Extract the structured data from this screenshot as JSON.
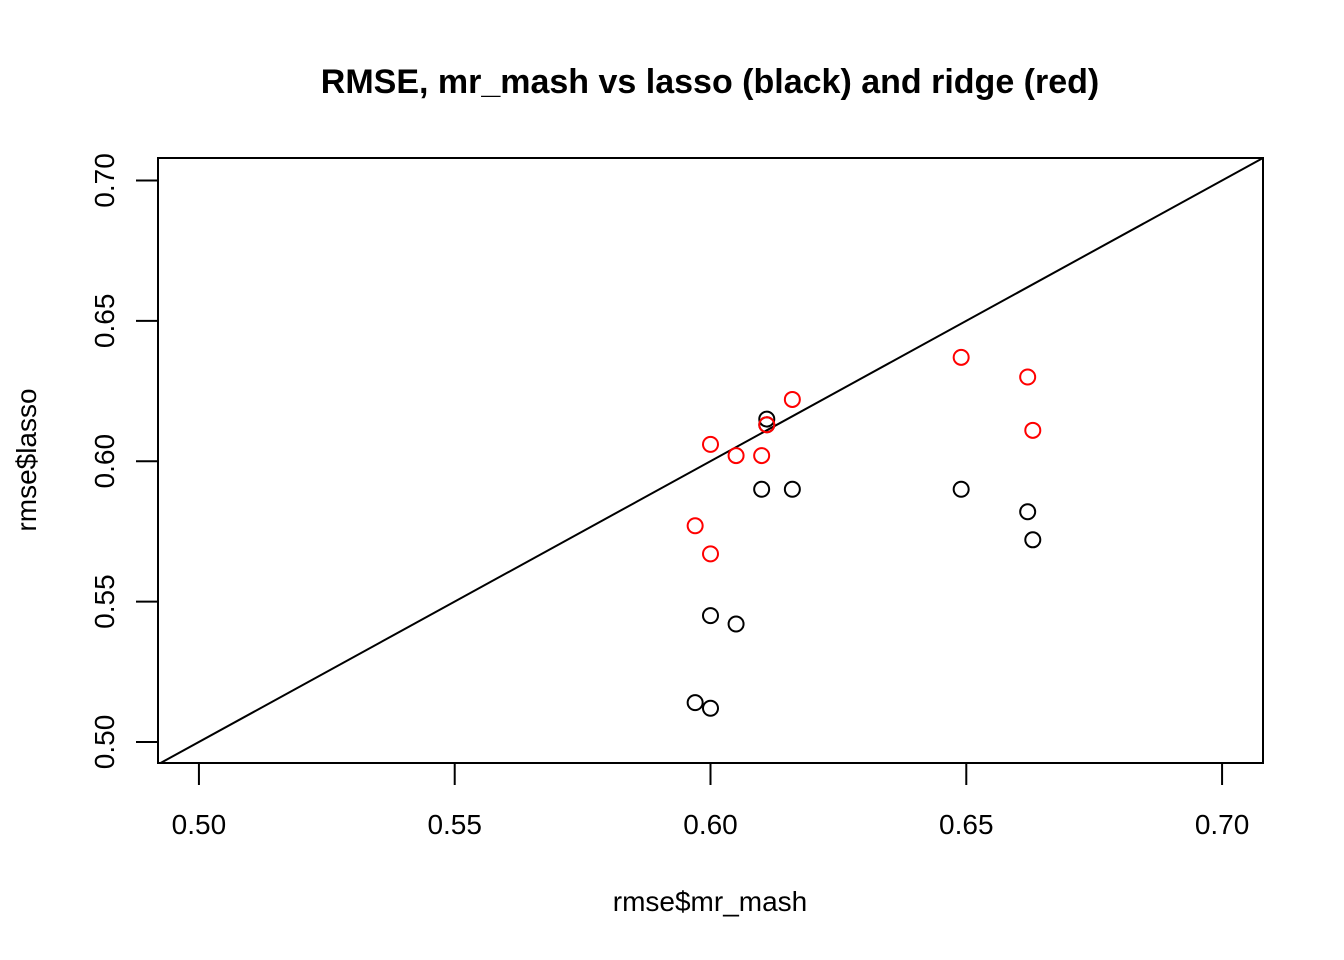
{
  "chart_data": {
    "type": "scatter",
    "title": "RMSE, mr_mash vs lasso (black) and ridge (red)",
    "xlabel": "rmse$mr_mash",
    "ylabel": "rmse$lasso",
    "xlim": [
      0.492,
      0.708
    ],
    "ylim": [
      0.4925,
      0.708
    ],
    "xticks": [
      0.5,
      0.55,
      0.6,
      0.65,
      0.7
    ],
    "xtick_labels": [
      "0.50",
      "0.55",
      "0.60",
      "0.65",
      "0.70"
    ],
    "yticks": [
      0.5,
      0.55,
      0.6,
      0.65,
      0.7
    ],
    "ytick_labels": [
      "0.50",
      "0.55",
      "0.60",
      "0.65",
      "0.70"
    ],
    "grid": false,
    "legend": "none",
    "reference_line": {
      "type": "identity",
      "slope": 1,
      "intercept": 0,
      "color": "#000000"
    },
    "series": [
      {
        "color": "#000000",
        "marker": "open-circle",
        "points": [
          {
            "x": 0.611,
            "y": 0.615
          },
          {
            "x": 0.611,
            "y": 0.613
          },
          {
            "x": 0.61,
            "y": 0.59
          },
          {
            "x": 0.616,
            "y": 0.59
          },
          {
            "x": 0.649,
            "y": 0.59
          },
          {
            "x": 0.662,
            "y": 0.582
          },
          {
            "x": 0.663,
            "y": 0.572
          },
          {
            "x": 0.6,
            "y": 0.545
          },
          {
            "x": 0.605,
            "y": 0.542
          },
          {
            "x": 0.597,
            "y": 0.514
          },
          {
            "x": 0.6,
            "y": 0.512
          }
        ]
      },
      {
        "color": "#ff0000",
        "marker": "open-circle",
        "points": [
          {
            "x": 0.649,
            "y": 0.637
          },
          {
            "x": 0.662,
            "y": 0.63
          },
          {
            "x": 0.616,
            "y": 0.622
          },
          {
            "x": 0.611,
            "y": 0.613
          },
          {
            "x": 0.663,
            "y": 0.611
          },
          {
            "x": 0.6,
            "y": 0.606
          },
          {
            "x": 0.605,
            "y": 0.602
          },
          {
            "x": 0.61,
            "y": 0.602
          },
          {
            "x": 0.597,
            "y": 0.577
          },
          {
            "x": 0.6,
            "y": 0.567
          }
        ]
      }
    ]
  }
}
